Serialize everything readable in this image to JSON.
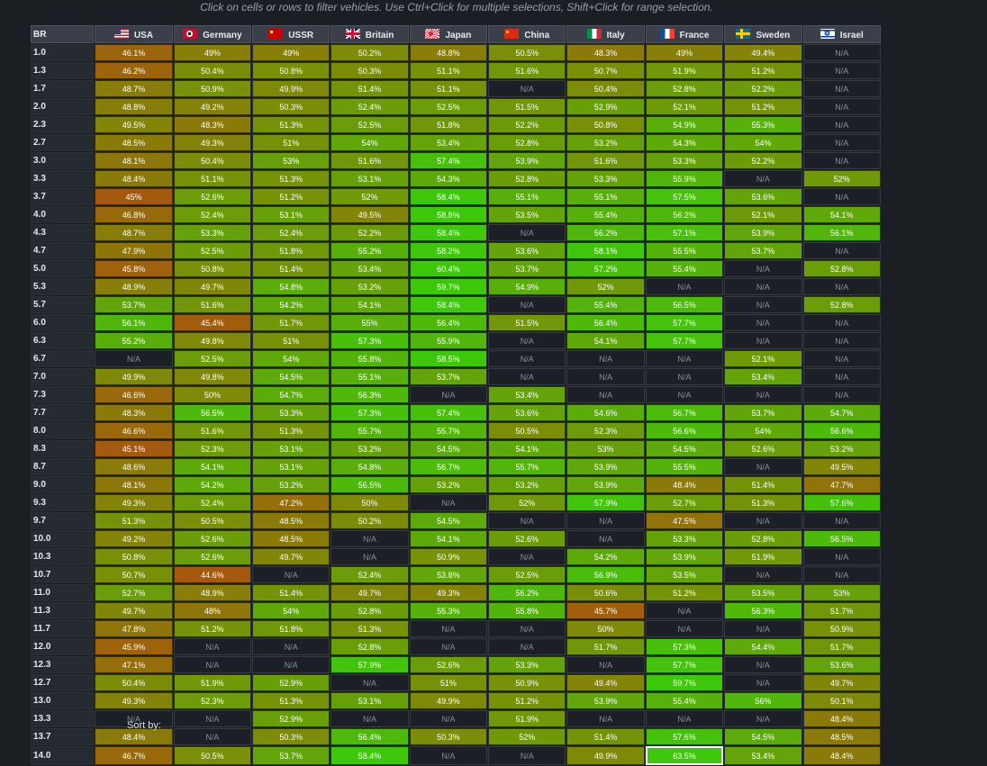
{
  "hint_text": "Click on cells or rows to filter vehicles. Use Ctrl+Click for multiple selections, Shift+Click for range selection.",
  "table": {
    "br_header": "BR",
    "nations": [
      {
        "name": "USA",
        "flag": "usa-flag-icon"
      },
      {
        "name": "Germany",
        "flag": "germany-flag-icon"
      },
      {
        "name": "USSR",
        "flag": "ussr-flag-icon"
      },
      {
        "name": "Britain",
        "flag": "britain-flag-icon"
      },
      {
        "name": "Japan",
        "flag": "japan-flag-icon"
      },
      {
        "name": "China",
        "flag": "china-flag-icon"
      },
      {
        "name": "Italy",
        "flag": "italy-flag-icon"
      },
      {
        "name": "France",
        "flag": "france-flag-icon"
      },
      {
        "name": "Sweden",
        "flag": "sweden-flag-icon"
      },
      {
        "name": "Israel",
        "flag": "israel-flag-icon"
      }
    ],
    "rows": [
      {
        "br": "1.0",
        "values": [
          "46.1%",
          "49%",
          "49%",
          "50.2%",
          "48.8%",
          "50.5%",
          "48.3%",
          "49%",
          "49.4%",
          "N/A"
        ]
      },
      {
        "br": "1.3",
        "values": [
          "46.2%",
          "50.4%",
          "50.8%",
          "50.3%",
          "51.1%",
          "51.6%",
          "50.7%",
          "51.9%",
          "51.2%",
          "N/A"
        ]
      },
      {
        "br": "1.7",
        "values": [
          "48.7%",
          "50.9%",
          "49.9%",
          "51.4%",
          "51.1%",
          "N/A",
          "50.4%",
          "52.8%",
          "52.2%",
          "N/A"
        ]
      },
      {
        "br": "2.0",
        "values": [
          "48.8%",
          "49.2%",
          "50.3%",
          "52.4%",
          "52.5%",
          "51.5%",
          "52.9%",
          "52.1%",
          "51.2%",
          "N/A"
        ]
      },
      {
        "br": "2.3",
        "values": [
          "49.5%",
          "48.3%",
          "51.3%",
          "52.5%",
          "51.8%",
          "52.2%",
          "50.8%",
          "54.9%",
          "55.3%",
          "N/A"
        ]
      },
      {
        "br": "2.7",
        "values": [
          "48.5%",
          "49.3%",
          "51%",
          "54%",
          "53.4%",
          "52.8%",
          "53.2%",
          "54.3%",
          "54%",
          "N/A"
        ]
      },
      {
        "br": "3.0",
        "values": [
          "48.1%",
          "50.4%",
          "53%",
          "51.6%",
          "57.4%",
          "53.9%",
          "51.6%",
          "53.3%",
          "52.2%",
          "N/A"
        ]
      },
      {
        "br": "3.3",
        "values": [
          "48.4%",
          "51.1%",
          "51.3%",
          "53.1%",
          "54.3%",
          "52.8%",
          "53.3%",
          "55.9%",
          "N/A",
          "52%"
        ]
      },
      {
        "br": "3.7",
        "values": [
          "45%",
          "52.6%",
          "51.2%",
          "52%",
          "58.4%",
          "55.1%",
          "55.1%",
          "57.5%",
          "53.6%",
          "N/A"
        ]
      },
      {
        "br": "4.0",
        "values": [
          "46.8%",
          "52.4%",
          "53.1%",
          "49.5%",
          "58.8%",
          "53.5%",
          "55.4%",
          "56.2%",
          "52.1%",
          "54.1%"
        ]
      },
      {
        "br": "4.3",
        "values": [
          "48.7%",
          "53.3%",
          "52.4%",
          "52.2%",
          "58.4%",
          "N/A",
          "56.2%",
          "57.1%",
          "53.9%",
          "56.1%"
        ]
      },
      {
        "br": "4.7",
        "values": [
          "47.9%",
          "52.5%",
          "51.8%",
          "55.2%",
          "58.2%",
          "53.6%",
          "58.1%",
          "55.5%",
          "53.7%",
          "N/A"
        ]
      },
      {
        "br": "5.0",
        "values": [
          "45.8%",
          "50.8%",
          "51.4%",
          "53.4%",
          "60.4%",
          "53.7%",
          "57.2%",
          "55.4%",
          "N/A",
          "52.8%"
        ]
      },
      {
        "br": "5.3",
        "values": [
          "48.9%",
          "49.7%",
          "54.8%",
          "53.2%",
          "59.7%",
          "54.9%",
          "52%",
          "N/A",
          "N/A",
          "N/A"
        ]
      },
      {
        "br": "5.7",
        "values": [
          "53.7%",
          "51.6%",
          "54.2%",
          "54.1%",
          "58.4%",
          "N/A",
          "55.4%",
          "56.5%",
          "N/A",
          "52.8%"
        ]
      },
      {
        "br": "6.0",
        "values": [
          "56.1%",
          "45.4%",
          "51.7%",
          "55%",
          "56.4%",
          "51.5%",
          "56.4%",
          "57.7%",
          "N/A",
          "N/A"
        ]
      },
      {
        "br": "6.3",
        "values": [
          "55.2%",
          "49.8%",
          "51%",
          "57.3%",
          "55.9%",
          "N/A",
          "54.1%",
          "57.7%",
          "N/A",
          "N/A"
        ]
      },
      {
        "br": "6.7",
        "values": [
          "N/A",
          "52.5%",
          "54%",
          "55.8%",
          "58.5%",
          "N/A",
          "N/A",
          "N/A",
          "52.1%",
          "N/A"
        ]
      },
      {
        "br": "7.0",
        "values": [
          "49.9%",
          "49.8%",
          "54.5%",
          "55.1%",
          "53.7%",
          "N/A",
          "N/A",
          "N/A",
          "53.4%",
          "N/A"
        ]
      },
      {
        "br": "7.3",
        "values": [
          "46.6%",
          "50%",
          "54.7%",
          "56.3%",
          "N/A",
          "53.4%",
          "N/A",
          "N/A",
          "N/A",
          "N/A"
        ]
      },
      {
        "br": "7.7",
        "values": [
          "48.3%",
          "56.5%",
          "53.3%",
          "57.3%",
          "57.4%",
          "53.6%",
          "54.6%",
          "56.7%",
          "53.7%",
          "54.7%"
        ]
      },
      {
        "br": "8.0",
        "values": [
          "46.6%",
          "51.6%",
          "51.3%",
          "55.7%",
          "55.7%",
          "50.5%",
          "52.3%",
          "56.6%",
          "54%",
          "56.6%"
        ]
      },
      {
        "br": "8.3",
        "values": [
          "45.1%",
          "52.3%",
          "53.1%",
          "53.2%",
          "54.5%",
          "54.1%",
          "53%",
          "54.5%",
          "52.6%",
          "53.2%"
        ]
      },
      {
        "br": "8.7",
        "values": [
          "48.6%",
          "54.1%",
          "53.1%",
          "54.8%",
          "56.7%",
          "55.7%",
          "53.9%",
          "55.5%",
          "N/A",
          "49.5%"
        ]
      },
      {
        "br": "9.0",
        "values": [
          "48.1%",
          "54.2%",
          "53.2%",
          "56.5%",
          "53.2%",
          "53.2%",
          "53.9%",
          "48.4%",
          "51.4%",
          "47.7%"
        ]
      },
      {
        "br": "9.3",
        "values": [
          "49.3%",
          "52.4%",
          "47.2%",
          "50%",
          "N/A",
          "52%",
          "57.9%",
          "52.7%",
          "51.3%",
          "57.6%"
        ]
      },
      {
        "br": "9.7",
        "values": [
          "51.3%",
          "50.5%",
          "48.5%",
          "50.2%",
          "54.5%",
          "N/A",
          "N/A",
          "47.5%",
          "N/A",
          "N/A"
        ]
      },
      {
        "br": "10.0",
        "values": [
          "49.2%",
          "52.6%",
          "48.5%",
          "N/A",
          "54.1%",
          "52.6%",
          "N/A",
          "53.3%",
          "52.8%",
          "56.5%"
        ]
      },
      {
        "br": "10.3",
        "values": [
          "50.8%",
          "52.6%",
          "49.7%",
          "N/A",
          "50.9%",
          "N/A",
          "54.2%",
          "53.9%",
          "51.9%",
          "N/A"
        ]
      },
      {
        "br": "10.7",
        "values": [
          "50.7%",
          "44.6%",
          "N/A",
          "52.4%",
          "53.8%",
          "52.5%",
          "56.9%",
          "53.5%",
          "N/A",
          "N/A"
        ]
      },
      {
        "br": "11.0",
        "values": [
          "52.7%",
          "48.9%",
          "51.4%",
          "49.7%",
          "49.3%",
          "56.2%",
          "50.6%",
          "51.2%",
          "53.5%",
          "53%"
        ]
      },
      {
        "br": "11.3",
        "values": [
          "49.7%",
          "48%",
          "54%",
          "52.8%",
          "55.3%",
          "55.8%",
          "45.7%",
          "N/A",
          "56.3%",
          "51.7%"
        ]
      },
      {
        "br": "11.7",
        "values": [
          "47.8%",
          "51.2%",
          "51.8%",
          "51.3%",
          "N/A",
          "N/A",
          "50%",
          "N/A",
          "N/A",
          "50.9%"
        ]
      },
      {
        "br": "12.0",
        "values": [
          "45.9%",
          "N/A",
          "N/A",
          "52.8%",
          "N/A",
          "N/A",
          "51.7%",
          "57.3%",
          "54.4%",
          "51.7%"
        ]
      },
      {
        "br": "12.3",
        "values": [
          "47.1%",
          "N/A",
          "N/A",
          "57.9%",
          "52.6%",
          "53.3%",
          "N/A",
          "57.7%",
          "N/A",
          "53.6%"
        ]
      },
      {
        "br": "12.7",
        "values": [
          "50.4%",
          "51.9%",
          "52.9%",
          "N/A",
          "51%",
          "50.9%",
          "49.4%",
          "59.7%",
          "N/A",
          "49.7%"
        ]
      },
      {
        "br": "13.0",
        "values": [
          "49.3%",
          "52.3%",
          "51.3%",
          "53.1%",
          "49.9%",
          "51.2%",
          "53.9%",
          "55.4%",
          "56%",
          "50.1%"
        ]
      },
      {
        "br": "13.3",
        "values": [
          "N/A",
          "N/A",
          "52.9%",
          "N/A",
          "N/A",
          "51.9%",
          "N/A",
          "N/A",
          "N/A",
          "48.4%"
        ]
      },
      {
        "br": "13.7",
        "values": [
          "48.4%",
          "N/A",
          "50.3%",
          "56.4%",
          "50.3%",
          "52%",
          "51.4%",
          "57.6%",
          "54.5%",
          "48.5%"
        ]
      },
      {
        "br": "14.0",
        "values": [
          "46.7%",
          "50.5%",
          "53.7%",
          "58.4%",
          "N/A",
          "N/A",
          "49.9%",
          "63.5%",
          "53.4%",
          "48.4%"
        ]
      }
    ],
    "selected_cell": {
      "br": "14.0",
      "nation": "France"
    }
  },
  "colors": {
    "background": "#1b1e23",
    "header_bg": "#3a3f4a",
    "na_bg": "#1c1f26",
    "low": "#a5590c",
    "mid": "#7e8a08",
    "high": "#3ec80c",
    "selected_border": "#ffffff"
  },
  "sort_label": "Sort by:"
}
